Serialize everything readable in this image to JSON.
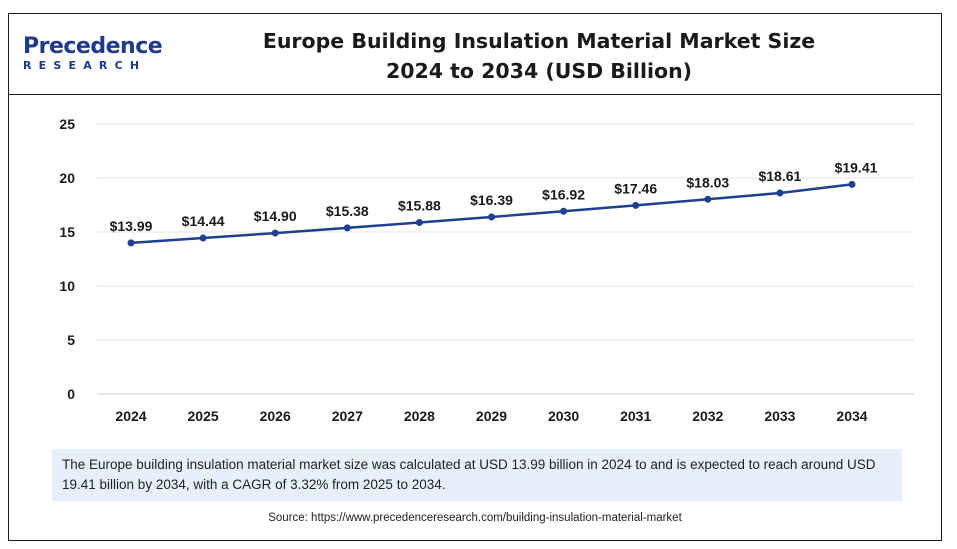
{
  "header": {
    "logo_top": "Precedence",
    "logo_bottom": "RESEARCH",
    "title_line1": "Europe Building Insulation Material Market Size",
    "title_line2": "2024 to 2034 (USD Billion)"
  },
  "chart_data": {
    "type": "line",
    "title": "Europe Building Insulation Material Market Size 2024 to 2034 (USD Billion)",
    "xlabel": "",
    "ylabel": "",
    "ylim": [
      0,
      25
    ],
    "yticks": [
      "0",
      "5",
      "10",
      "15",
      "20",
      "25"
    ],
    "categories": [
      "2024",
      "2025",
      "2026",
      "2027",
      "2028",
      "2029",
      "2030",
      "2031",
      "2032",
      "2033",
      "2034"
    ],
    "series": [
      {
        "values": [
          13.99,
          14.44,
          14.9,
          15.38,
          15.88,
          16.39,
          16.92,
          17.46,
          18.03,
          18.61,
          19.41
        ],
        "labels": [
          "$13.99",
          "$14.44",
          "$14.90",
          "$15.38",
          "$15.88",
          "$16.39",
          "$16.92",
          "$17.46",
          "$18.03",
          "$18.61",
          "$19.41"
        ],
        "color": "#1f3f8f"
      }
    ],
    "grid": true,
    "legend": "none"
  },
  "note": {
    "text": "The Europe building insulation material market size was calculated at USD 13.99 billion in 2024 to and is expected to reach around USD 19.41 billion by 2034, with a CAGR of 3.32% from 2025 to 2034."
  },
  "source": {
    "text": "Source: https://www.precedenceresearch.com/building-insulation-material-market"
  }
}
